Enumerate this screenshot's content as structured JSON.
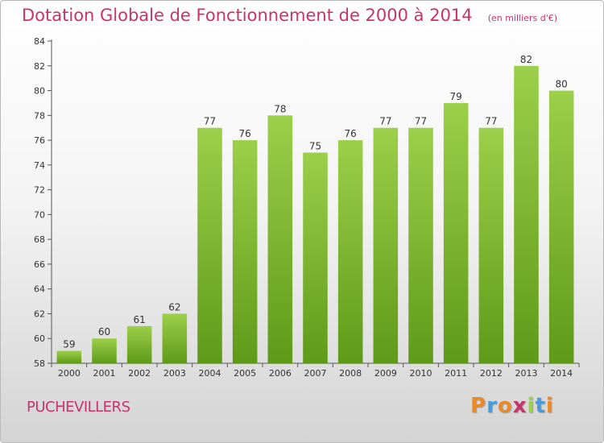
{
  "header": {
    "title": "Dotation Globale de Fonctionnement de 2000 à 2014",
    "subtitle": "(en milliers d'€)"
  },
  "footer": {
    "commune": "PUCHEVILLERS",
    "logo": "Proxiti"
  },
  "colors": {
    "title": "#c8336b",
    "bar_top": "#9ccf4a",
    "bar_bottom": "#5e9a18",
    "logo_letters": [
      "#e8892b",
      "#4a9ad8",
      "#e8892b",
      "#c8336b",
      "#9ccf4a",
      "#4a9ad8",
      "#e8892b"
    ]
  },
  "chart_data": {
    "type": "bar",
    "title": "Dotation Globale de Fonctionnement de 2000 à 2014",
    "subtitle": "(en milliers d'€)",
    "categories": [
      "2000",
      "2001",
      "2002",
      "2003",
      "2004",
      "2005",
      "2006",
      "2007",
      "2008",
      "2009",
      "2010",
      "2011",
      "2012",
      "2013",
      "2014"
    ],
    "values": [
      59,
      60,
      61,
      62,
      77,
      76,
      78,
      75,
      76,
      77,
      77,
      79,
      77,
      82,
      80
    ],
    "ylim": [
      58,
      84
    ],
    "yticks": [
      58,
      60,
      62,
      64,
      66,
      68,
      70,
      72,
      74,
      76,
      78,
      80,
      82,
      84
    ],
    "grid": false,
    "data_labels": true
  }
}
